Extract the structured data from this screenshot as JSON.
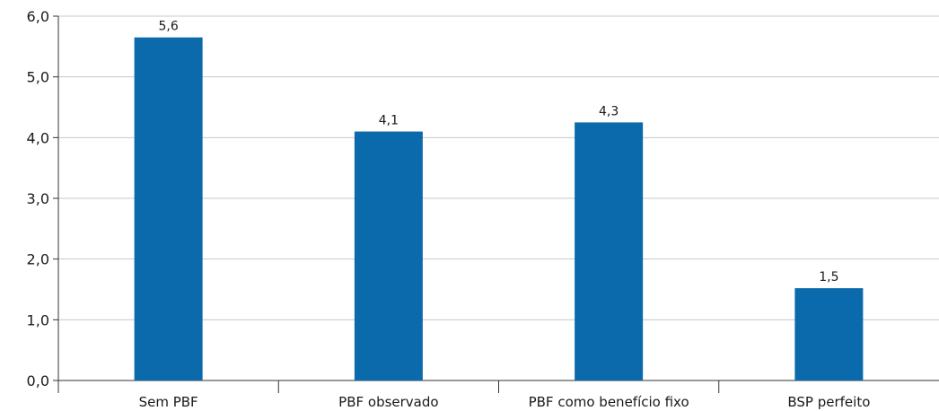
{
  "chart_data": {
    "type": "bar",
    "categories": [
      "Sem PBF",
      "PBF observado",
      "PBF como benefício fixo",
      "BSP perfeito"
    ],
    "values": [
      5.65,
      4.1,
      4.25,
      1.52
    ],
    "data_labels": [
      "5,6",
      "4,1",
      "4,3",
      "1,5"
    ],
    "title": "",
    "xlabel": "",
    "ylabel": "",
    "ylim": [
      0,
      6
    ],
    "yticks": [
      0,
      1,
      2,
      3,
      4,
      5,
      6
    ],
    "ytick_labels": [
      "0,0",
      "1,0",
      "2,0",
      "3,0",
      "4,0",
      "5,0",
      "6,0"
    ],
    "grid": true,
    "bar_color": "#0a6aab",
    "grid_color": "#c8c8c8"
  }
}
